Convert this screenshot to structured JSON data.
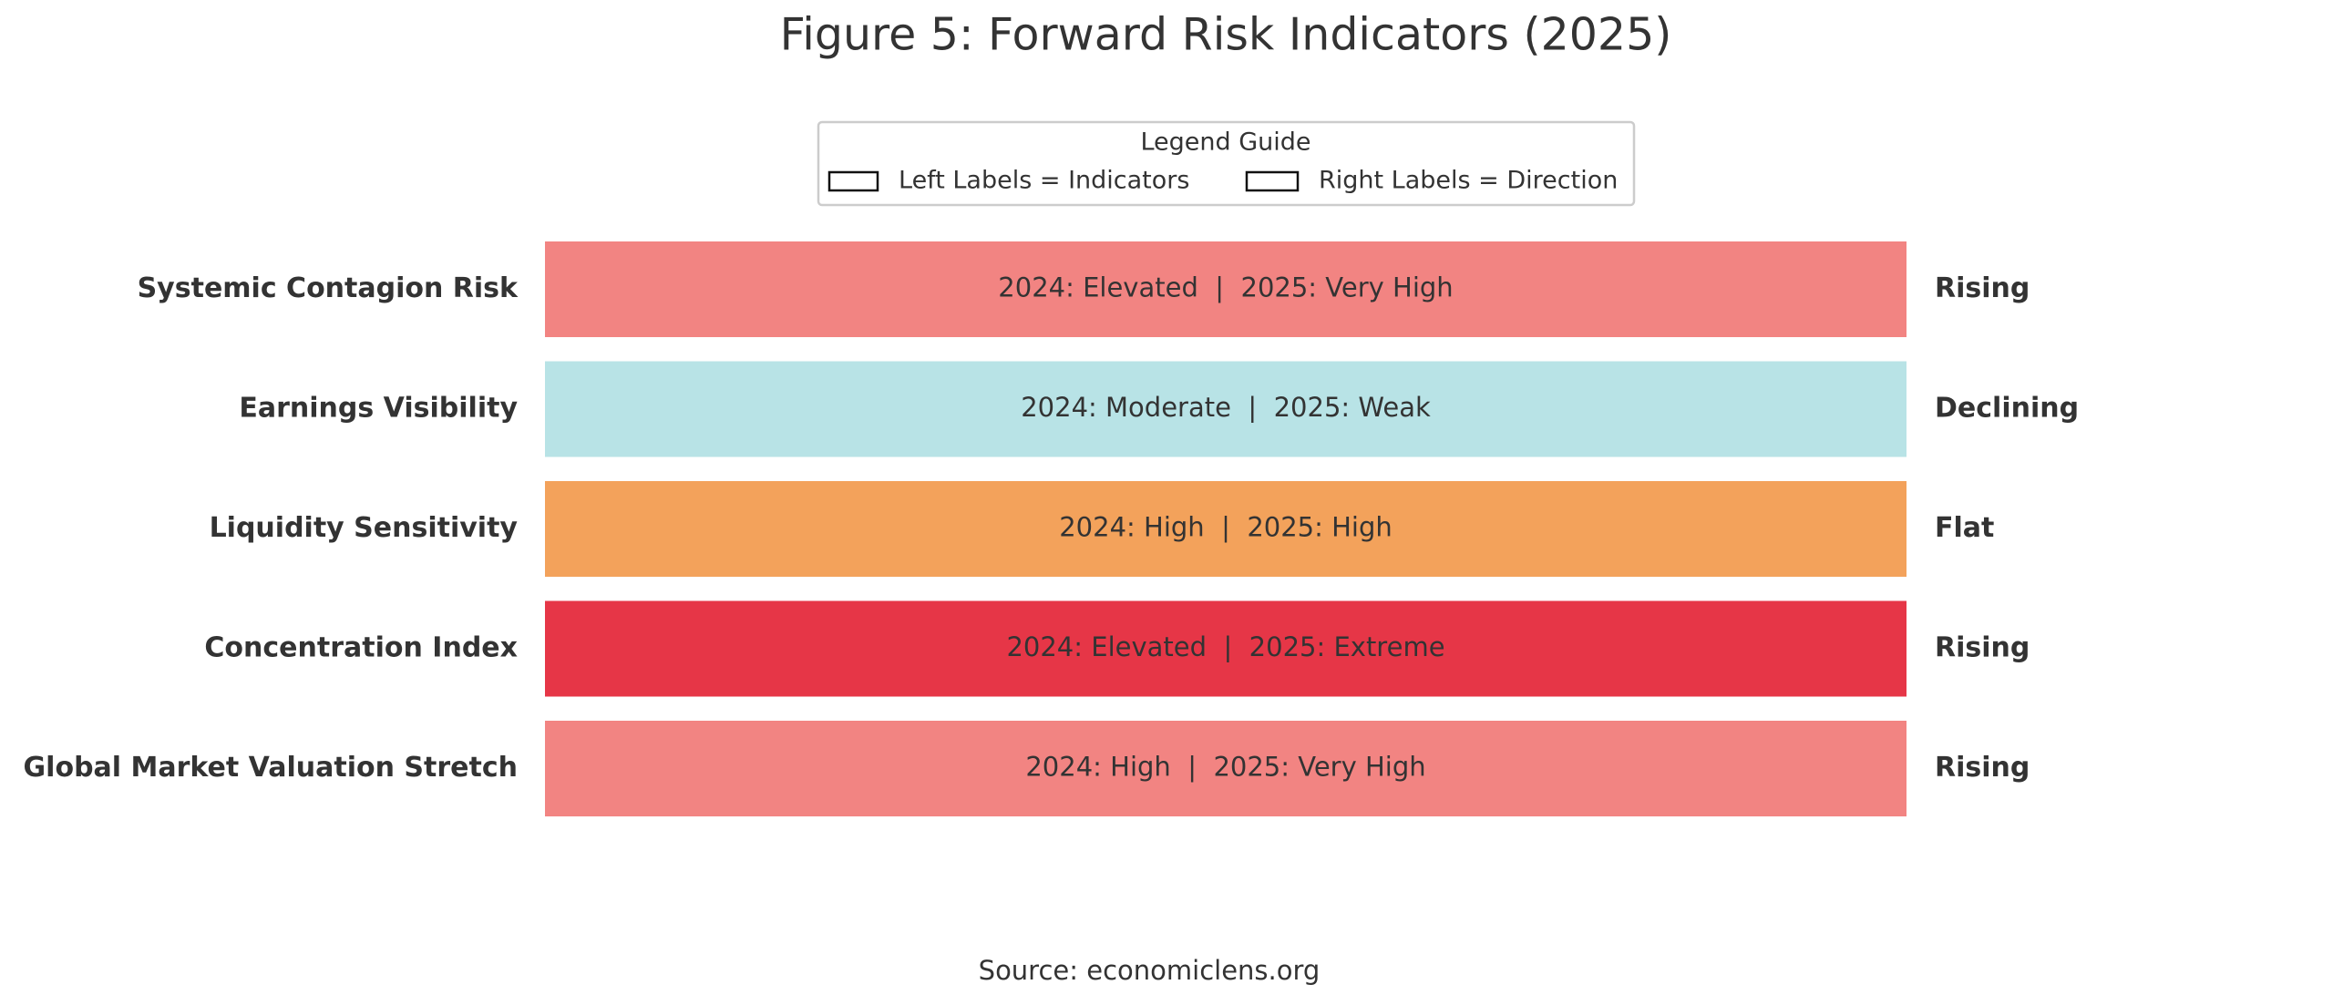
{
  "title": "Figure 5: Forward Risk Indicators (2025)",
  "legend": {
    "title": "Legend Guide",
    "items": [
      "Left Labels = Indicators",
      "Right Labels = Direction"
    ]
  },
  "rows": [
    {
      "indicator": "Systemic Contagion Risk",
      "detail": "2024: Elevated  |  2025: Very High",
      "direction": "Rising",
      "color": "#f28482"
    },
    {
      "indicator": "Earnings Visibility",
      "detail": "2024: Moderate  |  2025: Weak",
      "direction": "Declining",
      "color": "#b8e3e6"
    },
    {
      "indicator": "Liquidity Sensitivity",
      "detail": "2024: High  |  2025: High",
      "direction": "Flat",
      "color": "#f3a25b"
    },
    {
      "indicator": "Concentration Index",
      "detail": "2024: Elevated  |  2025: Extreme",
      "direction": "Rising",
      "color": "#e63647"
    },
    {
      "indicator": "Global Market Valuation Stretch",
      "detail": "2024: High  |  2025: Very High",
      "direction": "Rising",
      "color": "#f28482"
    }
  ],
  "source": "Source: economiclens.org"
}
